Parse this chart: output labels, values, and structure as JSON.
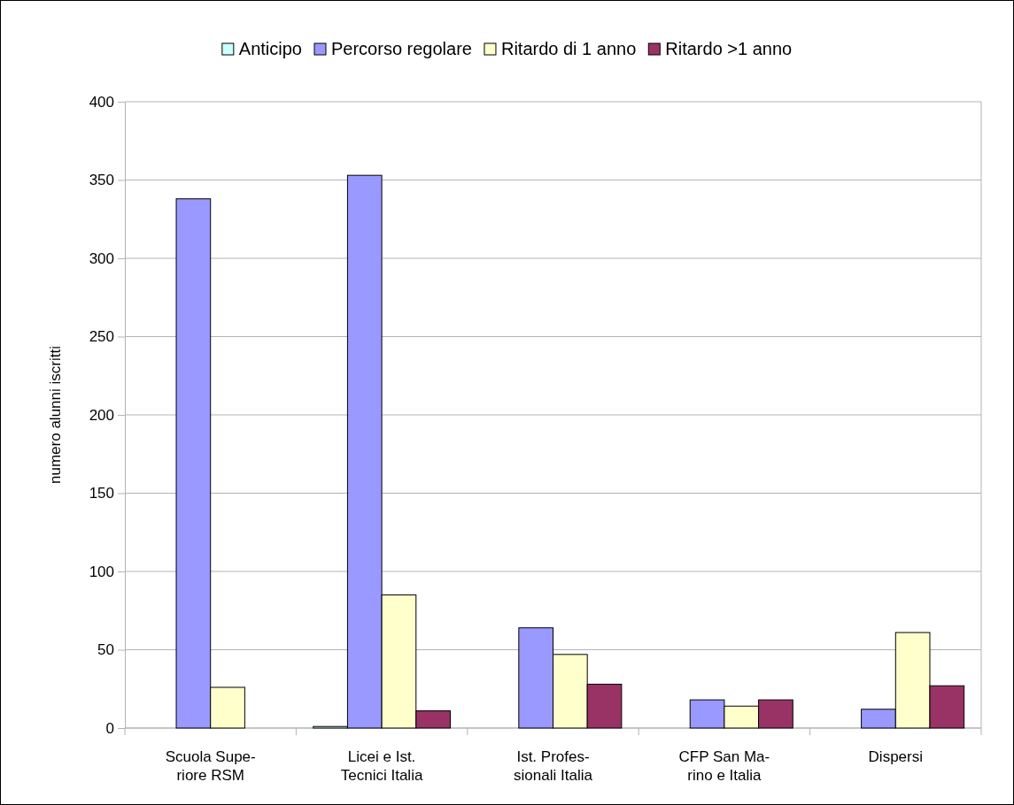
{
  "chart_data": {
    "type": "bar",
    "ylabel": "numero alunni iscritti",
    "categories": [
      "Scuola Supe-\nriore RSM",
      "Licei e Ist.\nTecnici Italia",
      "Ist. Profes-\nsionali Italia",
      "CFP San Ma-\nrino e Italia",
      "Dispersi"
    ],
    "series": [
      {
        "name": "Anticipo",
        "color": "#ccffff",
        "values": [
          0,
          1,
          0,
          0,
          0
        ]
      },
      {
        "name": "Percorso regolare",
        "color": "#9999ff",
        "values": [
          338,
          353,
          64,
          18,
          12
        ]
      },
      {
        "name": "Ritardo di 1 anno",
        "color": "#ffffcc",
        "values": [
          26,
          85,
          47,
          14,
          61
        ]
      },
      {
        "name": "Ritardo >1 anno",
        "color": "#993366",
        "values": [
          0,
          11,
          28,
          18,
          27
        ]
      }
    ],
    "ylim": [
      0,
      400
    ],
    "yticks": [
      0,
      50,
      100,
      150,
      200,
      250,
      300,
      350,
      400
    ],
    "grid": "y",
    "legend": "top"
  }
}
